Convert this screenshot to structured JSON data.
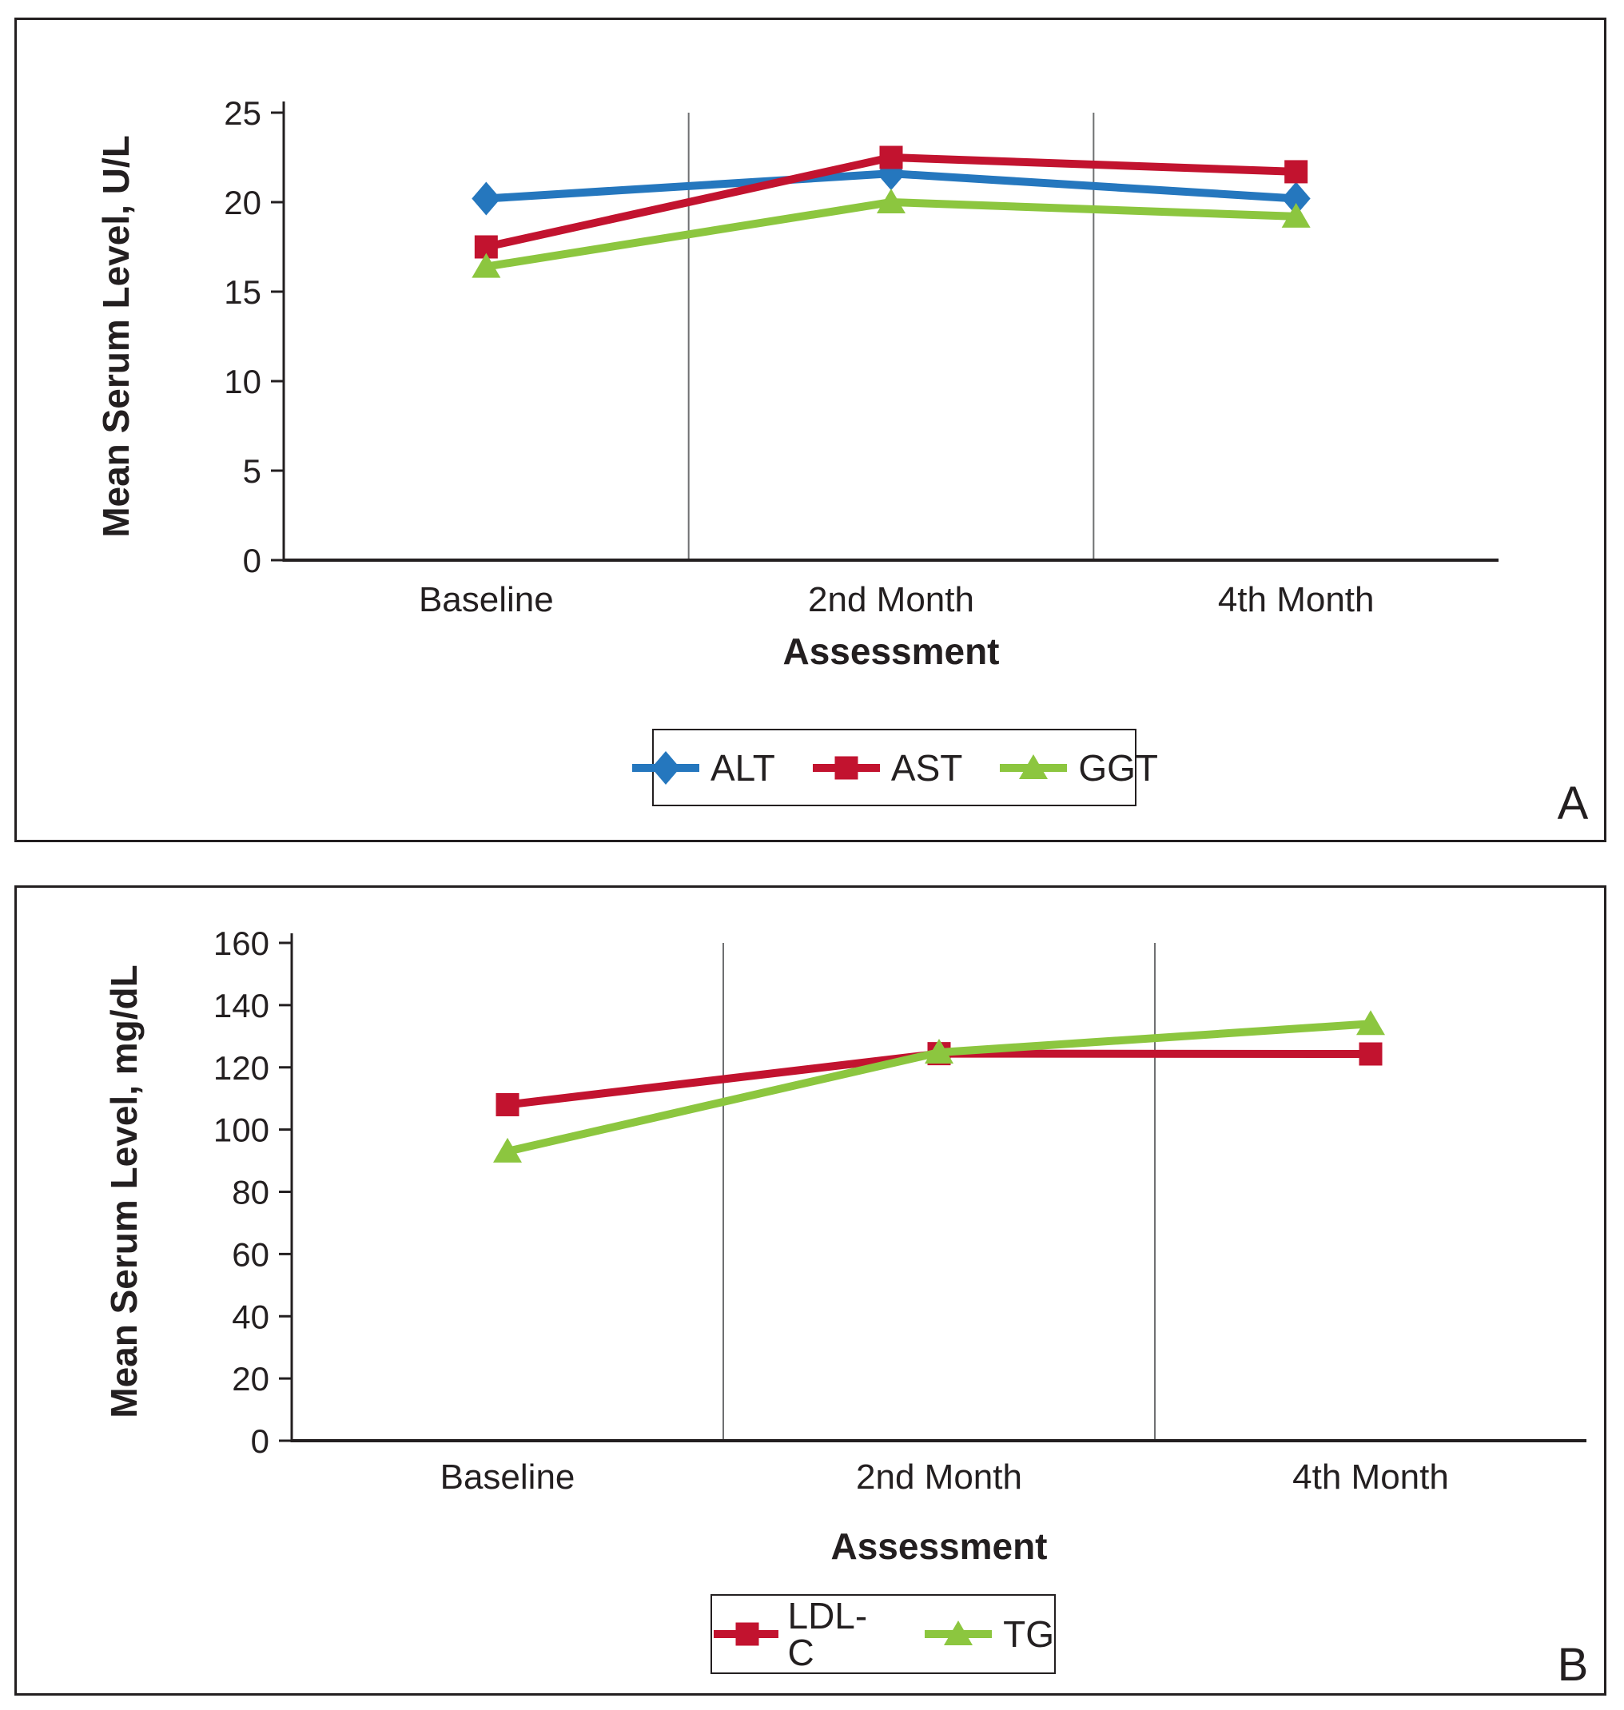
{
  "figure": {
    "background": "#ffffff",
    "panel_border_color": "#231f20"
  },
  "colors": {
    "axis": "#231f20",
    "gridline": "#6f7072",
    "text": "#231f20",
    "alt_blue": "#2577be",
    "ast_red": "#c2132f",
    "lipid_green": "#8cc63f"
  },
  "chart_data": [
    {
      "type": "line",
      "panel_label": "A",
      "xlabel": "Assessment",
      "ylabel": "Mean Serum Level, U/L",
      "categories": [
        "Baseline",
        "2nd Month",
        "4th Month"
      ],
      "ylim": [
        0,
        25
      ],
      "ytick_step": 5,
      "yticks": [
        0,
        5,
        10,
        15,
        20,
        25
      ],
      "grid": "vertical-category-boundary-lines",
      "legend_position": "bottom-boxed",
      "series": [
        {
          "name": "ALT",
          "color": "#2577be",
          "marker": "diamond",
          "values": [
            20.2,
            21.6,
            20.2
          ]
        },
        {
          "name": "AST",
          "color": "#c2132f",
          "marker": "square",
          "values": [
            17.5,
            22.5,
            21.7
          ]
        },
        {
          "name": "GGT",
          "color": "#8cc63f",
          "marker": "triangle",
          "values": [
            16.4,
            20.0,
            19.2
          ]
        }
      ]
    },
    {
      "type": "line",
      "panel_label": "B",
      "xlabel": "Assessment",
      "ylabel": "Mean Serum Level, mg/dL",
      "categories": [
        "Baseline",
        "2nd Month",
        "4th Month"
      ],
      "ylim": [
        0,
        160
      ],
      "ytick_step": 20,
      "yticks": [
        0,
        20,
        40,
        60,
        80,
        100,
        120,
        140,
        160
      ],
      "grid": "vertical-category-boundary-lines",
      "legend_position": "bottom-boxed",
      "series": [
        {
          "name": "LDL-C",
          "color": "#c2132f",
          "marker": "square",
          "values": [
            108,
            124.4,
            124.3
          ]
        },
        {
          "name": "TG",
          "color": "#8cc63f",
          "marker": "triangle",
          "values": [
            93,
            124.8,
            134
          ]
        }
      ]
    }
  ]
}
